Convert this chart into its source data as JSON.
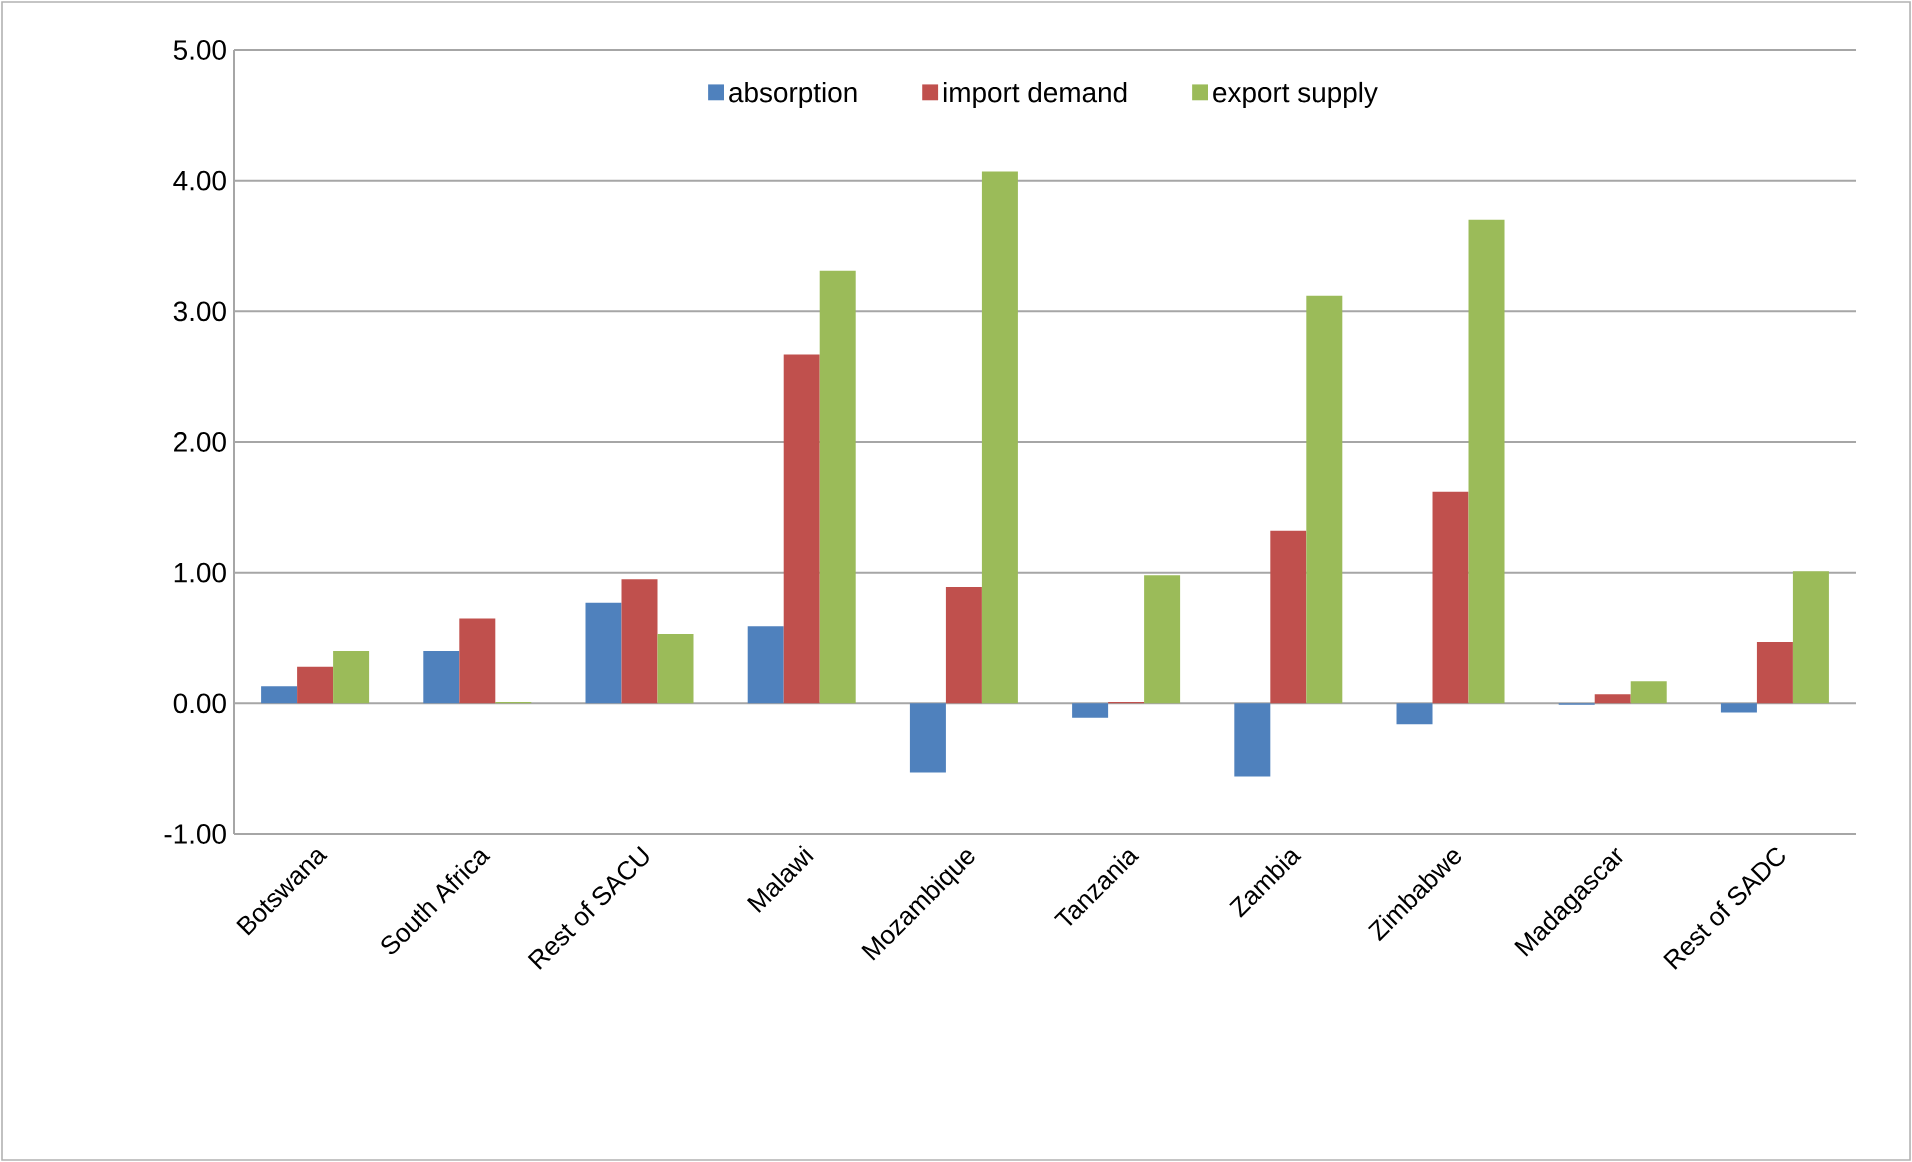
{
  "chart_data": {
    "type": "bar",
    "categories": [
      "Botswana",
      "South Africa",
      "Rest of SACU",
      "Malawi",
      "Mozambique",
      "Tanzania",
      "Zambia",
      "Zimbabwe",
      "Madagascar",
      "Rest of SADC"
    ],
    "series": [
      {
        "name": "absorption",
        "color": "#4f81bd",
        "values": [
          0.13,
          0.4,
          0.77,
          0.59,
          -0.53,
          -0.11,
          -0.56,
          -0.16,
          -0.01,
          -0.07
        ]
      },
      {
        "name": "import demand",
        "color": "#c0504d",
        "values": [
          0.28,
          0.65,
          0.95,
          2.67,
          0.89,
          0.01,
          1.32,
          1.62,
          0.07,
          0.47
        ]
      },
      {
        "name": "export supply",
        "color": "#9bbb59",
        "values": [
          0.4,
          0.01,
          0.53,
          3.31,
          4.07,
          0.98,
          3.12,
          3.7,
          0.17,
          1.01
        ]
      }
    ],
    "ylim": [
      -1,
      5
    ],
    "yticks": [
      {
        "value": -1,
        "label": "-1.00"
      },
      {
        "value": 0,
        "label": "0.00"
      },
      {
        "value": 1,
        "label": "1.00"
      },
      {
        "value": 2,
        "label": "2.00"
      },
      {
        "value": 3,
        "label": "3.00"
      },
      {
        "value": 4,
        "label": "4.00"
      },
      {
        "value": 5,
        "label": "5.00"
      }
    ],
    "grid": "y",
    "legend": "top"
  }
}
